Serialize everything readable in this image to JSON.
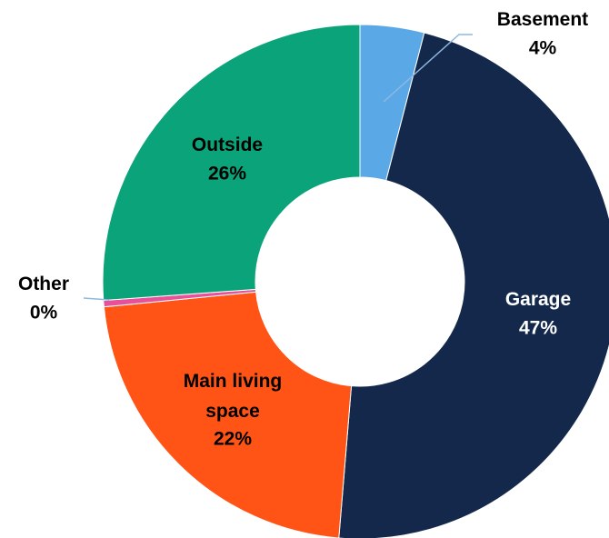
{
  "chart_data": {
    "type": "donut",
    "categories": [
      "Basement",
      "Garage",
      "Main living space",
      "Other",
      "Outside"
    ],
    "values": [
      4,
      47,
      22,
      0.4,
      26
    ],
    "value_labels": [
      "4%",
      "47%",
      "22%",
      "0%",
      "26%"
    ],
    "colors": [
      "#5aa9e6",
      "#14284b",
      "#ff5416",
      "#e8509a",
      "#0ba37a"
    ]
  }
}
